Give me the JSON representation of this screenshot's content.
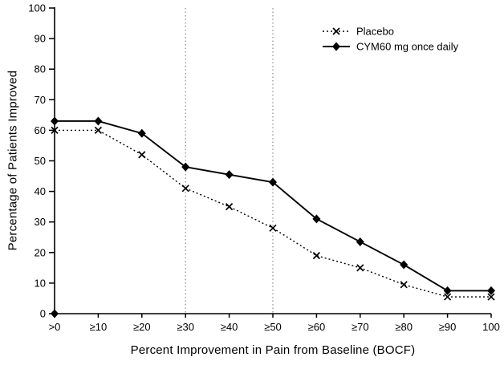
{
  "chart_data": {
    "type": "line",
    "title": "",
    "xlabel": "Percent Improvement in Pain from Baseline (BOCF)",
    "ylabel": "Percentage of Patients Improved",
    "categories": [
      ">0",
      "≥10",
      "≥20",
      "≥30",
      "≥40",
      "≥50",
      "≥60",
      "≥70",
      "≥80",
      "≥90",
      "100"
    ],
    "ylim": [
      0,
      100
    ],
    "ytick_step": 10,
    "grid": "off",
    "reference_lines_at": [
      "≥30",
      "≥50"
    ],
    "legend_position": "top-right-inside",
    "series": [
      {
        "name": "Placebo",
        "marker": "x",
        "line_style": "dotted",
        "values": [
          60,
          60,
          52,
          41,
          35,
          28,
          19,
          15,
          9.5,
          5.5,
          5.5
        ]
      },
      {
        "name": "CYM60 mg once daily",
        "marker": "diamond",
        "line_style": "solid",
        "values": [
          63,
          63,
          59,
          48,
          45.5,
          43,
          31,
          23.5,
          16,
          7.5,
          7.5
        ]
      }
    ],
    "colors": {
      "line": "#000000",
      "text": "#000000",
      "reference_line": "#8c8c8c",
      "background": "#ffffff"
    }
  }
}
